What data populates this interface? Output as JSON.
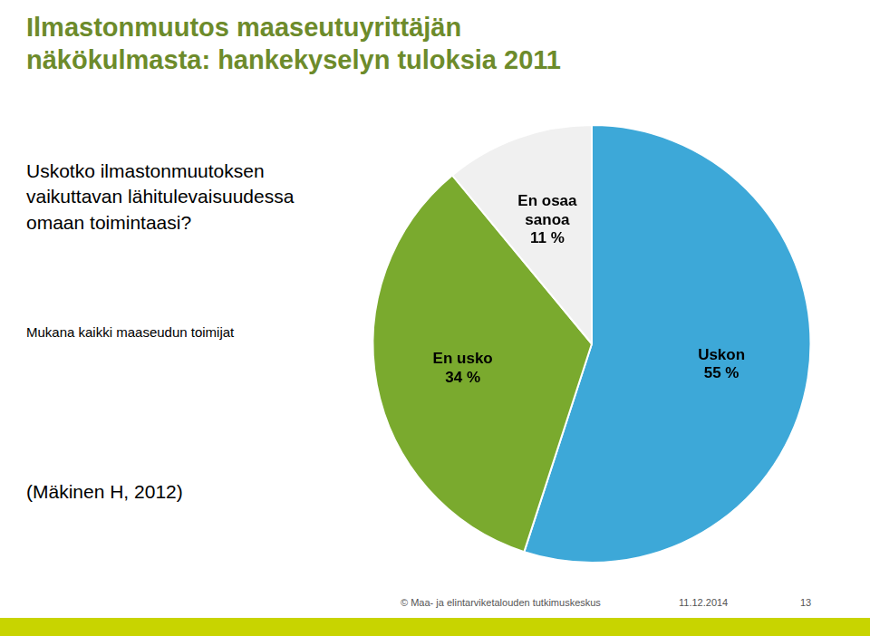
{
  "chart_data": {
    "type": "pie",
    "title": "Ilmastonmuutos maaseutuyrittäjän\nnäkökulmasta: hankekyselyn tuloksia 2011",
    "subtitle": "Mukana kaikki maaseudun toimijat",
    "annotations": [
      "Uskotko ilmastonmuutoksen\nvaikuttavan lähitulevaisuudessa\nomaan toimintaasi?",
      "(Mäkinen H, 2012)",
      "© Maa- ja elintarviketalouden tutkimuskeskus",
      "11.12.2014",
      "13"
    ],
    "categories": [
      "Uskon",
      "En usko",
      "En osaa sanoa"
    ],
    "values": [
      55,
      34,
      11
    ],
    "value_labels": [
      "55 %",
      "34 %",
      "11 %"
    ],
    "data_labels": true,
    "colors": [
      "#3da8d8",
      "#7aaa2e",
      "#f0f0f0"
    ],
    "legend": false
  }
}
